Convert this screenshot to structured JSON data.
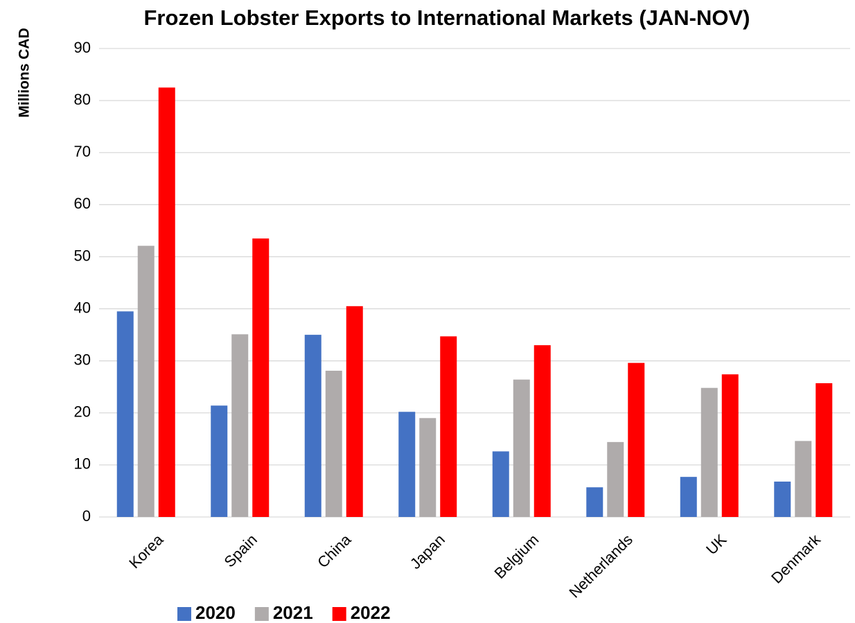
{
  "chart_data": {
    "type": "bar",
    "title": "Frozen Lobster Exports to International Markets (JAN-NOV)",
    "y_label": "Millions CAD",
    "categories": [
      "Korea",
      "Spain",
      "China",
      "Japan",
      "Belgium",
      "Netherlands",
      "UK",
      "Denmark"
    ],
    "series": [
      {
        "name": "2020",
        "color": "#4472c4",
        "values": [
          39.5,
          21.4,
          35,
          20.2,
          12.6,
          5.7,
          7.7,
          6.8
        ]
      },
      {
        "name": "2021",
        "color": "#afabab",
        "values": [
          52.1,
          35.1,
          28.1,
          19,
          26.4,
          14.4,
          24.8,
          14.6
        ]
      },
      {
        "name": "2022",
        "color": "#ff0000",
        "values": [
          82.5,
          53.5,
          40.5,
          34.7,
          33,
          29.6,
          27.4,
          25.7
        ]
      }
    ],
    "ylim": [
      0,
      90
    ],
    "yticks": [
      0,
      10,
      20,
      30,
      40,
      50,
      60,
      70,
      80,
      90
    ],
    "grid": true,
    "legend": "bottom"
  }
}
